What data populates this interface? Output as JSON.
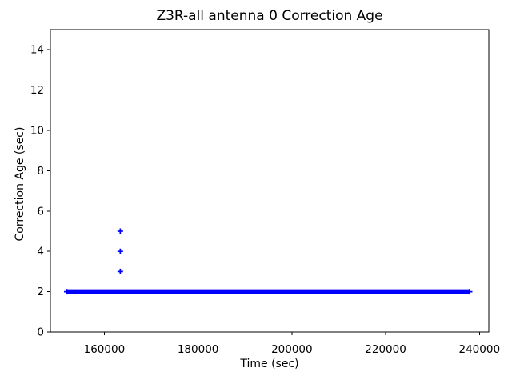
{
  "chart_data": {
    "type": "scatter",
    "title": "Z3R-all antenna 0 Correction Age",
    "xlabel": "Time (sec)",
    "ylabel": "Correction Age (sec)",
    "marker": "+",
    "marker_color": "#0000ff",
    "axis_color": "#000000",
    "background_color": "#ffffff",
    "grid": false,
    "legend": "none",
    "xlim": [
      148500,
      242000
    ],
    "ylim": [
      0,
      15
    ],
    "xticks": [
      160000,
      180000,
      200000,
      220000,
      240000
    ],
    "yticks": [
      0,
      2,
      4,
      6,
      8,
      10,
      12,
      14
    ],
    "series": [
      {
        "name": "antenna 0 correction age",
        "color": "#0000ff",
        "dense_run": {
          "y": 2,
          "x_start": 152000,
          "x_end": 237900,
          "note": "continuous band of overlapping + markers at 2 sec"
        },
        "outlier_points": [
          {
            "x": 163400,
            "y": 3
          },
          {
            "x": 163400,
            "y": 4
          },
          {
            "x": 163400,
            "y": 5
          }
        ]
      }
    ]
  }
}
